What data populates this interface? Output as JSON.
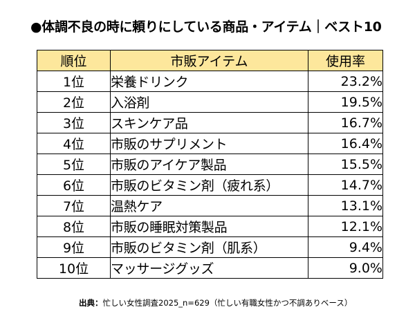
{
  "title": "●体調不良の時に頼りにしている商品・アイテム｜ベスト10",
  "chart_data": {
    "type": "table",
    "columns": [
      "順位",
      "市販アイテム",
      "使用率"
    ],
    "rows": [
      {
        "rank": "1位",
        "item": "栄養ドリンク",
        "rate": "23.2%"
      },
      {
        "rank": "2位",
        "item": "入浴剤",
        "rate": "19.5%"
      },
      {
        "rank": "3位",
        "item": "スキンケア品",
        "rate": "16.7%"
      },
      {
        "rank": "4位",
        "item": "市販のサプリメント",
        "rate": "16.4%"
      },
      {
        "rank": "5位",
        "item": "市販のアイケア製品",
        "rate": "15.5%"
      },
      {
        "rank": "6位",
        "item": "市販のビタミン剤（疲れ系）",
        "rate": "14.7%"
      },
      {
        "rank": "7位",
        "item": "温熱ケア",
        "rate": "13.1%"
      },
      {
        "rank": "8位",
        "item": "市販の睡眠対策製品",
        "rate": "12.1%"
      },
      {
        "rank": "9位",
        "item": "市販のビタミン剤（肌系）",
        "rate": "9.4%"
      },
      {
        "rank": "10位",
        "item": "マッサージグッズ",
        "rate": "9.0%"
      }
    ],
    "header_color": "#fde79c"
  },
  "source": {
    "label": "出典：",
    "text": "忙しい女性調査2025_n=629（忙しい有職女性かつ不調ありベース）"
  }
}
